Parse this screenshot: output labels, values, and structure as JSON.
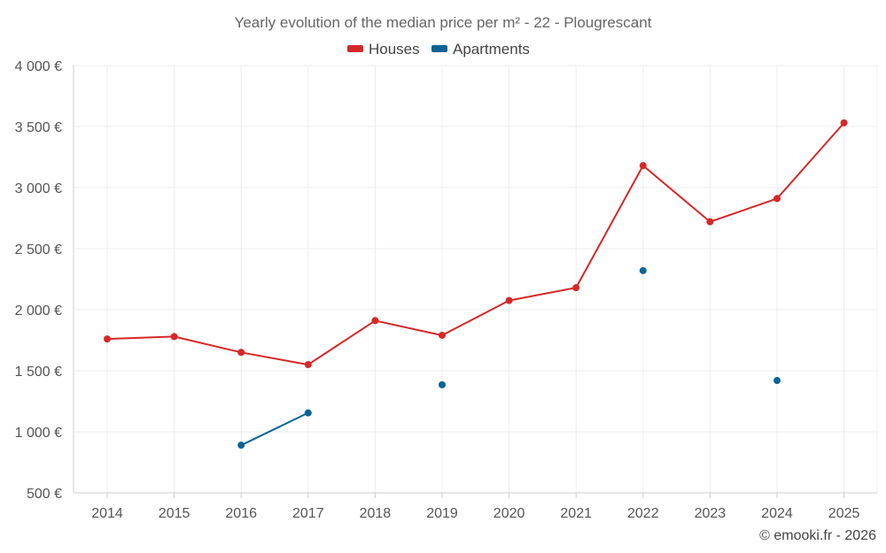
{
  "chart_data": {
    "type": "line",
    "title": "Yearly evolution of the median price per m² - 22 - Plougrescant",
    "categories": [
      "2014",
      "2015",
      "2016",
      "2017",
      "2018",
      "2019",
      "2020",
      "2021",
      "2022",
      "2023",
      "2024",
      "2025"
    ],
    "ylim": [
      500,
      4000
    ],
    "yticks": [
      500,
      1000,
      1500,
      2000,
      2500,
      3000,
      3500,
      4000
    ],
    "ytick_labels": [
      "500 €",
      "1 000 €",
      "1 500 €",
      "2 000 €",
      "2 500 €",
      "3 000 €",
      "3 500 €",
      "4 000 €"
    ],
    "grid": true,
    "legend_position": "top-center",
    "series": [
      {
        "name": "Houses",
        "color": "#d62728",
        "values": [
          1760,
          1780,
          1650,
          1550,
          1910,
          1790,
          2075,
          2180,
          3180,
          2720,
          2910,
          3530
        ]
      },
      {
        "name": "Apartments",
        "color": "#0a6496",
        "values": [
          null,
          null,
          890,
          1155,
          null,
          1385,
          null,
          null,
          2320,
          null,
          1420,
          null
        ]
      }
    ],
    "credit": "© emooki.fr - 2026"
  }
}
